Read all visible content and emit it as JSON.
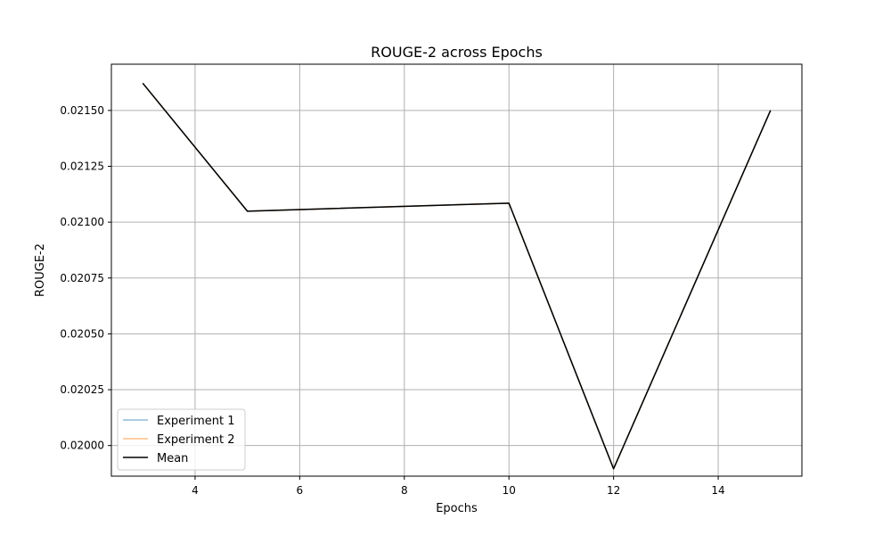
{
  "chart_data": {
    "type": "line",
    "title": "ROUGE-2 across Epochs",
    "xlabel": "Epochs",
    "ylabel": "ROUGE-2",
    "xlim": [
      2.4,
      15.6
    ],
    "ylim": [
      0.019863,
      0.021707
    ],
    "xticks": [
      4,
      6,
      8,
      10,
      12,
      14
    ],
    "xtick_labels": [
      "4",
      "6",
      "8",
      "10",
      "12",
      "14"
    ],
    "yticks": [
      0.02,
      0.02025,
      0.0205,
      0.02075,
      0.021,
      0.02125,
      0.0215
    ],
    "ytick_labels": [
      "0.02000",
      "0.02025",
      "0.02050",
      "0.02075",
      "0.02100",
      "0.02125",
      "0.02150"
    ],
    "grid": true,
    "legend_position": "lower-left",
    "series": [
      {
        "name": "Experiment 1",
        "color": "#1f77b4",
        "opacity": 0.5,
        "x": [
          3,
          5,
          10,
          12,
          15
        ],
        "y": [
          0.021622,
          0.021049,
          0.021085,
          0.019896,
          0.0215
        ]
      },
      {
        "name": "Experiment 2",
        "color": "#ff7f0e",
        "opacity": 0.5,
        "x": [
          3,
          5,
          10,
          12,
          15
        ],
        "y": [
          0.021622,
          0.021049,
          0.021085,
          0.019896,
          0.0215
        ]
      },
      {
        "name": "Mean",
        "color": "#000000",
        "opacity": 1,
        "x": [
          3,
          5,
          10,
          12,
          15
        ],
        "y": [
          0.021622,
          0.021049,
          0.021085,
          0.019896,
          0.0215
        ]
      }
    ]
  }
}
